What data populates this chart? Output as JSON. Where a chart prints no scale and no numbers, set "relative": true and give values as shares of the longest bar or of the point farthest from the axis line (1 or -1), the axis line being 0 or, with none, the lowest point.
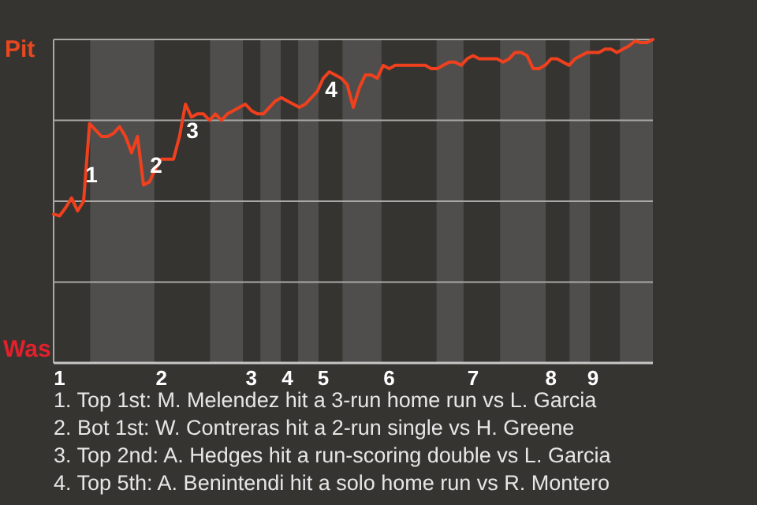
{
  "chart_data": {
    "type": "line",
    "relative": true,
    "categories": [
      null,
      "1",
      null,
      null,
      null,
      null,
      null,
      null,
      null,
      null,
      null,
      null,
      null,
      null,
      null,
      null,
      null,
      null,
      "2",
      null,
      null,
      null,
      null,
      null,
      null,
      null,
      null,
      null,
      null,
      null,
      null,
      null,
      null,
      "3",
      null,
      null,
      null,
      null,
      null,
      "4",
      null,
      null,
      null,
      null,
      null,
      "5",
      null,
      null,
      null,
      null,
      null,
      null,
      null,
      null,
      null,
      null,
      "6",
      null,
      null,
      null,
      null,
      null,
      null,
      null,
      null,
      null,
      null,
      null,
      null,
      null,
      "7",
      null,
      null,
      null,
      null,
      null,
      null,
      null,
      null,
      null,
      null,
      null,
      null,
      "8",
      null,
      null,
      null,
      null,
      null,
      null,
      "9",
      null,
      null,
      null,
      null,
      null,
      null,
      null,
      null,
      null,
      null
    ],
    "series": [
      {
        "color": "#f0401e",
        "values": [
          0.46,
          0.455,
          0.48,
          0.51,
          0.47,
          0.5,
          0.74,
          0.72,
          0.7,
          0.7,
          0.71,
          0.73,
          0.7,
          0.65,
          0.7,
          0.55,
          0.56,
          0.6,
          0.63,
          0.63,
          0.63,
          0.7,
          0.8,
          0.76,
          0.77,
          0.77,
          0.75,
          0.77,
          0.75,
          0.77,
          0.78,
          0.79,
          0.8,
          0.78,
          0.77,
          0.77,
          0.79,
          0.81,
          0.82,
          0.81,
          0.8,
          0.79,
          0.8,
          0.82,
          0.84,
          0.88,
          0.9,
          0.89,
          0.88,
          0.86,
          0.79,
          0.85,
          0.89,
          0.89,
          0.88,
          0.92,
          0.91,
          0.92,
          0.92,
          0.92,
          0.92,
          0.92,
          0.92,
          0.91,
          0.91,
          0.92,
          0.93,
          0.93,
          0.92,
          0.94,
          0.95,
          0.94,
          0.94,
          0.94,
          0.94,
          0.93,
          0.94,
          0.96,
          0.96,
          0.95,
          0.91,
          0.91,
          0.92,
          0.94,
          0.94,
          0.93,
          0.92,
          0.94,
          0.95,
          0.96,
          0.96,
          0.96,
          0.97,
          0.97,
          0.96,
          0.97,
          0.98,
          0.995,
          0.99,
          0.99,
          1.0
        ]
      }
    ],
    "grid": "y",
    "line_style": "solid",
    "annotations": [
      "Pit",
      "Was",
      "1",
      "2",
      "3",
      "4",
      "1. Top 1st: M. Melendez hit a 3-run home run vs L. Garcia",
      "2. Bot 1st: W. Contreras hit a 2-run single vs H. Greene",
      "3. Top 2nd: A. Hedges hit a run-scoring double vs L. Garcia",
      "4. Top 5th: A. Benintendi hit a solo home run vs R. Montero"
    ]
  }
}
